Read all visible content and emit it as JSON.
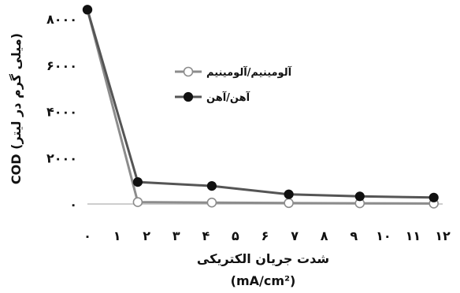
{
  "chart_data": {
    "type": "line",
    "xlabel": "شدت جریان الکتریکی",
    "xlabel_unit": "(mA/cm²)",
    "ylabel": "COD (میلی گرم در لیتر)",
    "x_ticks": [
      "۰",
      "۱",
      "۲",
      "۳",
      "۴",
      "۵",
      "۶",
      "۷",
      "۸",
      "۹",
      "۱۰",
      "۱۱",
      "۱۲"
    ],
    "y_ticks": [
      "۰",
      "۲۰۰۰",
      "۴۰۰۰",
      "۶۰۰۰",
      "۸۰۰۰"
    ],
    "xlim": [
      0,
      12
    ],
    "ylim": [
      0,
      8000
    ],
    "grid": false,
    "legend_position": "top-right",
    "series": [
      {
        "name": "آلومینیم/آلومینیم",
        "color": "#8c8c8c",
        "marker": "open-circle",
        "x": [
          0,
          1.7,
          4.2,
          6.8,
          9.2,
          11.7
        ],
        "y": [
          8400,
          80,
          60,
          40,
          30,
          20
        ]
      },
      {
        "name": "آهن/آهن",
        "color": "#555555",
        "marker": "filled-circle",
        "x": [
          0,
          1.7,
          4.2,
          6.8,
          9.2,
          11.7
        ],
        "y": [
          8400,
          950,
          780,
          420,
          330,
          280
        ]
      }
    ]
  }
}
